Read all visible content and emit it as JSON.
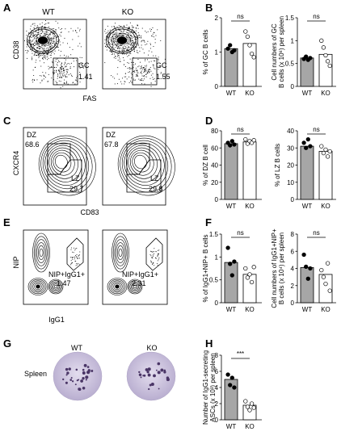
{
  "panels": {
    "A": {
      "letter": "A",
      "col_labels": [
        "WT",
        "KO"
      ],
      "ylabel": "CD38",
      "xlabel": "FAS",
      "gates": [
        {
          "name": "GC",
          "value": "1.41"
        },
        {
          "name": "GC",
          "value": "1.55"
        }
      ]
    },
    "B": {
      "letter": "B"
    },
    "C": {
      "letter": "C",
      "ylabel": "CXCR4",
      "xlabel": "CD83",
      "gates": [
        {
          "dz": "DZ",
          "dz_val": "68.6",
          "lz": "LZ",
          "lz_val": "29.7"
        },
        {
          "dz": "DZ",
          "dz_val": "67.8",
          "lz": "LZ",
          "lz_val": "29.8"
        }
      ]
    },
    "D": {
      "letter": "D"
    },
    "E": {
      "letter": "E",
      "ylabel": "NIP",
      "xlabel": "IgG1",
      "gates": [
        {
          "name": "NIP+IgG1+",
          "value": "1.47"
        },
        {
          "name": "NIP+IgG1+",
          "value": "2.31"
        }
      ]
    },
    "F": {
      "letter": "F"
    },
    "G": {
      "letter": "G",
      "row_label": "Spleen",
      "col_labels": [
        "WT",
        "KO"
      ]
    },
    "H": {
      "letter": "H"
    }
  },
  "colors": {
    "wt_bar": "#a6a6a6",
    "ko_bar": "#ffffff",
    "wt_dot": "#000000",
    "spot_well": "#cfc8df",
    "spot": "#4a3566"
  },
  "chart_data": [
    {
      "id": "B1",
      "type": "bar",
      "categories": [
        "WT",
        "KO"
      ],
      "ylabel": "% of GC B cells",
      "ylim": [
        0,
        2
      ],
      "yticks": [
        0,
        1,
        2
      ],
      "sig": "ns",
      "series": [
        {
          "name": "WT",
          "mean": 1.1,
          "points": [
            1.1,
            1.2,
            1.0,
            1.05
          ]
        },
        {
          "name": "KO",
          "mean": 1.25,
          "points": [
            1.6,
            1.45,
            1.2,
            0.95,
            0.85
          ]
        }
      ]
    },
    {
      "id": "B2",
      "type": "bar",
      "categories": [
        "WT",
        "KO"
      ],
      "ylabel": "Cell numbers of GC B cells (x 10^6) per spleen",
      "ylim": [
        0,
        1.5
      ],
      "yticks": [
        0.0,
        0.5,
        1.0,
        1.5
      ],
      "sig": "ns",
      "series": [
        {
          "name": "WT",
          "mean": 0.62,
          "points": [
            0.6,
            0.65,
            0.58,
            0.62
          ]
        },
        {
          "name": "KO",
          "mean": 0.7,
          "points": [
            1.0,
            0.85,
            0.68,
            0.55,
            0.45
          ]
        }
      ]
    },
    {
      "id": "D1",
      "type": "bar",
      "categories": [
        "WT",
        "KO"
      ],
      "ylabel": "% of DZ B cell",
      "ylim": [
        0,
        80
      ],
      "yticks": [
        0,
        20,
        40,
        60,
        80
      ],
      "sig": "ns",
      "series": [
        {
          "name": "WT",
          "mean": 65,
          "points": [
            66,
            63,
            68,
            64
          ]
        },
        {
          "name": "KO",
          "mean": 67,
          "points": [
            70,
            65,
            68,
            66,
            69
          ]
        }
      ]
    },
    {
      "id": "D2",
      "type": "bar",
      "categories": [
        "WT",
        "KO"
      ],
      "ylabel": "% of LZ B cells",
      "ylim": [
        0,
        40
      ],
      "yticks": [
        0,
        10,
        20,
        30,
        40
      ],
      "sig": "ns",
      "series": [
        {
          "name": "WT",
          "mean": 31,
          "points": [
            33,
            30,
            35,
            31
          ]
        },
        {
          "name": "KO",
          "mean": 28,
          "points": [
            31,
            27,
            29,
            25,
            28
          ]
        }
      ]
    },
    {
      "id": "F1",
      "type": "bar",
      "categories": [
        "WT",
        "KO"
      ],
      "ylabel": "% of IgG1+NIP+ B cells",
      "ylim": [
        0,
        1.5
      ],
      "yticks": [
        0.0,
        0.5,
        1.0,
        1.5
      ],
      "sig": "ns",
      "series": [
        {
          "name": "WT",
          "mean": 0.88,
          "points": [
            1.2,
            0.85,
            0.6,
            0.9
          ]
        },
        {
          "name": "KO",
          "mean": 0.62,
          "points": [
            0.75,
            0.55,
            0.62,
            0.45,
            0.78
          ]
        }
      ]
    },
    {
      "id": "F2",
      "type": "bar",
      "categories": [
        "WT",
        "KO"
      ],
      "ylabel": "Cell numbers of IgG1+NIP+ B cells (x 10^4) per spleen",
      "ylim": [
        0,
        8
      ],
      "yticks": [
        0,
        2,
        4,
        6,
        8
      ],
      "sig": "ns",
      "series": [
        {
          "name": "WT",
          "mean": 4.1,
          "points": [
            5.6,
            4.2,
            2.8,
            4.0
          ]
        },
        {
          "name": "KO",
          "mean": 3.3,
          "points": [
            3.8,
            3.0,
            2.2,
            4.6,
            1.4
          ]
        }
      ]
    },
    {
      "id": "H",
      "type": "bar",
      "categories": [
        "WT",
        "KO"
      ],
      "ylabel": "Number of IgG1-secreting ASCs (x 10^3) per spleen",
      "ylim": [
        0,
        8
      ],
      "yticks": [
        0,
        2,
        4,
        6,
        8
      ],
      "sig": "***",
      "series": [
        {
          "name": "WT",
          "mean": 5.0,
          "points": [
            5.6,
            4.3,
            5.2,
            4.0
          ]
        },
        {
          "name": "KO",
          "mean": 1.8,
          "points": [
            2.3,
            1.6,
            1.2,
            2.0,
            1.5
          ]
        }
      ]
    }
  ]
}
